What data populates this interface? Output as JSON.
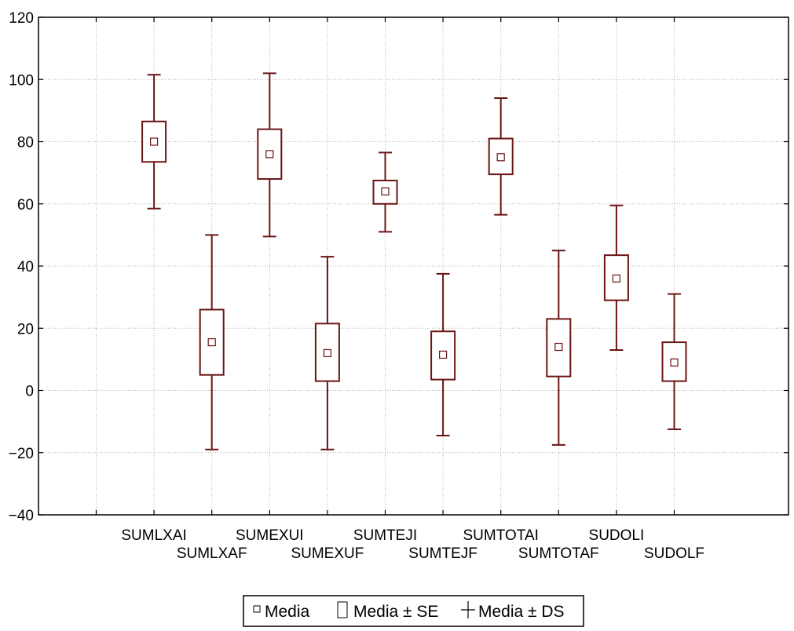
{
  "chart_data": {
    "type": "box",
    "title": "",
    "xlabel": "",
    "ylabel": "",
    "ylim": [
      -40,
      120
    ],
    "yticks": [
      -40,
      -20,
      0,
      20,
      40,
      60,
      80,
      100,
      120
    ],
    "ytick_labels": [
      "−40",
      "−20",
      "0",
      "20",
      "40",
      "60",
      "80",
      "100",
      "120"
    ],
    "grid": true,
    "legend_position": "bottom-center",
    "colors": {
      "box": "#6b1414",
      "grid": "#b0b0b0",
      "axis": "#000000"
    },
    "categories": [
      "SUMLXAI",
      "SUMLXAF",
      "SUMEXUI",
      "SUMEXUF",
      "SUMTEJI",
      "SUMTEJF",
      "SUMTOTAI",
      "SUMTOTAF",
      "SUDOLI",
      "SUDOLF"
    ],
    "series": [
      {
        "category": "SUMLXAI",
        "mean": 80,
        "se_low": 73.5,
        "se_high": 86.5,
        "sd_low": 58.5,
        "sd_high": 101.5
      },
      {
        "category": "SUMLXAF",
        "mean": 15.5,
        "se_low": 5,
        "se_high": 26,
        "sd_low": -19,
        "sd_high": 50
      },
      {
        "category": "SUMEXUI",
        "mean": 76,
        "se_low": 68,
        "se_high": 84,
        "sd_low": 49.5,
        "sd_high": 102
      },
      {
        "category": "SUMEXUF",
        "mean": 12,
        "se_low": 3,
        "se_high": 21.5,
        "sd_low": -19,
        "sd_high": 43
      },
      {
        "category": "SUMTEJI",
        "mean": 64,
        "se_low": 60,
        "se_high": 67.5,
        "sd_low": 51,
        "sd_high": 76.5
      },
      {
        "category": "SUMTEJF",
        "mean": 11.5,
        "se_low": 3.5,
        "se_high": 19,
        "sd_low": -14.5,
        "sd_high": 37.5
      },
      {
        "category": "SUMTOTAI",
        "mean": 75,
        "se_low": 69.5,
        "se_high": 81,
        "sd_low": 56.5,
        "sd_high": 94
      },
      {
        "category": "SUMTOTAF",
        "mean": 14,
        "se_low": 4.5,
        "se_high": 23,
        "sd_low": -17.5,
        "sd_high": 45
      },
      {
        "category": "SUDOLI",
        "mean": 36,
        "se_low": 29,
        "se_high": 43.5,
        "sd_low": 13,
        "sd_high": 59.5
      },
      {
        "category": "SUDOLF",
        "mean": 9,
        "se_low": 3,
        "se_high": 15.5,
        "sd_low": -12.5,
        "sd_high": 31
      }
    ],
    "legend": [
      {
        "symbol": "mean-marker",
        "label": "Media"
      },
      {
        "symbol": "se-box",
        "label": "Media ± SE"
      },
      {
        "symbol": "sd-whisker",
        "label": "Media ± DS"
      }
    ]
  }
}
